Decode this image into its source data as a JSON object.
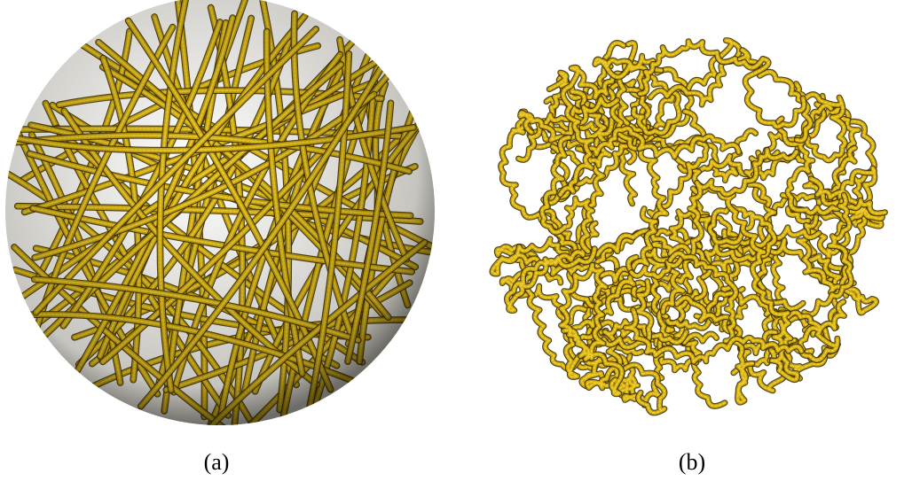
{
  "figure": {
    "panels": [
      {
        "label": "(a)",
        "structure": "spherical-globule"
      },
      {
        "label": "(b)",
        "structure": "crumpled-globule"
      }
    ]
  },
  "colors": {
    "strand": "#c9a40e",
    "strand_highlight": "#f0d030",
    "strand_shadow": "#3a2d00",
    "background": "#ffffff"
  }
}
